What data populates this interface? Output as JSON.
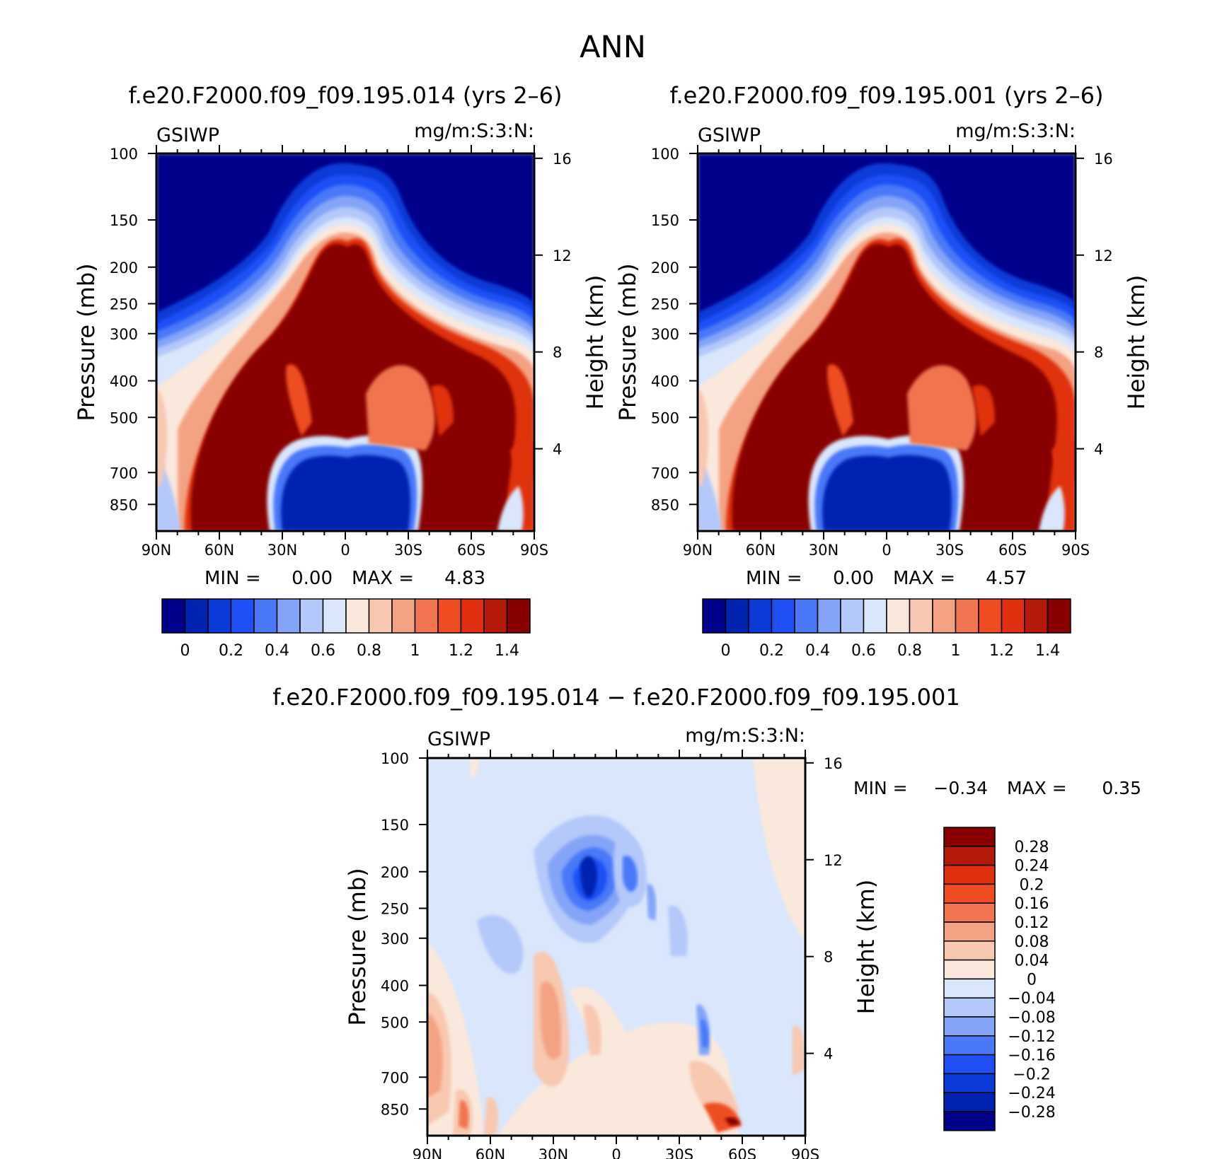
{
  "figure": {
    "title": "ANN",
    "diff_title": "f.e20.F2000.f09_f09.195.014 − f.e20.F2000.f09_f09.195.001"
  },
  "chart_data": [
    {
      "type": "heatmap",
      "panel": "model-1",
      "title": "f.e20.F2000.f09_f09.195.014 (yrs 2–6)",
      "variable": "GSIWP",
      "units": "mg/m:S:3:N:",
      "ylabel": "Pressure (mb)",
      "y2label": "Height (km)",
      "x_ticks": [
        "90N",
        "60N",
        "30N",
        "0",
        "30S",
        "60S",
        "90S"
      ],
      "y_ticks": [
        "100",
        "150",
        "200",
        "250",
        "300",
        "400",
        "500",
        "700",
        "850"
      ],
      "y2_ticks": [
        "16",
        "12",
        "8",
        "4"
      ],
      "min_label": "MIN =",
      "min_value": "0.00",
      "max_label": "MAX =",
      "max_value": "4.83",
      "colorbar_labels": [
        "0",
        "0.2",
        "0.4",
        "0.6",
        "0.8",
        "1",
        "1.2",
        "1.4"
      ]
    },
    {
      "type": "heatmap",
      "panel": "model-2",
      "title": "f.e20.F2000.f09_f09.195.001 (yrs 2–6)",
      "variable": "GSIWP",
      "units": "mg/m:S:3:N:",
      "ylabel": "Pressure (mb)",
      "y2label": "Height (km)",
      "x_ticks": [
        "90N",
        "60N",
        "30N",
        "0",
        "30S",
        "60S",
        "90S"
      ],
      "y_ticks": [
        "100",
        "150",
        "200",
        "250",
        "300",
        "400",
        "500",
        "700",
        "850"
      ],
      "y2_ticks": [
        "16",
        "12",
        "8",
        "4"
      ],
      "min_label": "MIN =",
      "min_value": "0.00",
      "max_label": "MAX =",
      "max_value": "4.57",
      "colorbar_labels": [
        "0",
        "0.2",
        "0.4",
        "0.6",
        "0.8",
        "1",
        "1.2",
        "1.4"
      ]
    },
    {
      "type": "heatmap",
      "panel": "difference",
      "variable": "GSIWP",
      "units": "mg/m:S:3:N:",
      "ylabel": "Pressure (mb)",
      "y2label": "Height (km)",
      "x_ticks": [
        "90N",
        "60N",
        "30N",
        "0",
        "30S",
        "60S",
        "90S"
      ],
      "y_ticks": [
        "100",
        "150",
        "200",
        "250",
        "300",
        "400",
        "500",
        "700",
        "850"
      ],
      "y2_ticks": [
        "16",
        "12",
        "8",
        "4"
      ],
      "min_label": "MIN =",
      "min_value": "−0.34",
      "max_label": "MAX =",
      "max_value": "0.35",
      "colorbar_labels": [
        "0.28",
        "0.24",
        "0.2",
        "0.16",
        "0.12",
        "0.08",
        "0.04",
        "0",
        "−0.04",
        "−0.08",
        "−0.12",
        "−0.16",
        "−0.2",
        "−0.24",
        "−0.28"
      ]
    }
  ],
  "colors": {
    "model_scale": [
      "#00008b",
      "#0022b0",
      "#0a3bd8",
      "#1e50f5",
      "#4a78f8",
      "#84a4f8",
      "#b4c8fa",
      "#d9e6fc",
      "#fbe8dc",
      "#f8c8b0",
      "#f4a284",
      "#f07550",
      "#ee4d22",
      "#e03010",
      "#b31a08",
      "#880000"
    ],
    "diff_scale": [
      "#00008b",
      "#0022b0",
      "#0a3bd8",
      "#1e50f5",
      "#4a78f8",
      "#84a4f8",
      "#b4c8fa",
      "#d9e6fc",
      "#fbe8dc",
      "#f8c8b0",
      "#f4a284",
      "#f07550",
      "#ee4d22",
      "#e03010",
      "#b31a08",
      "#880000"
    ]
  }
}
